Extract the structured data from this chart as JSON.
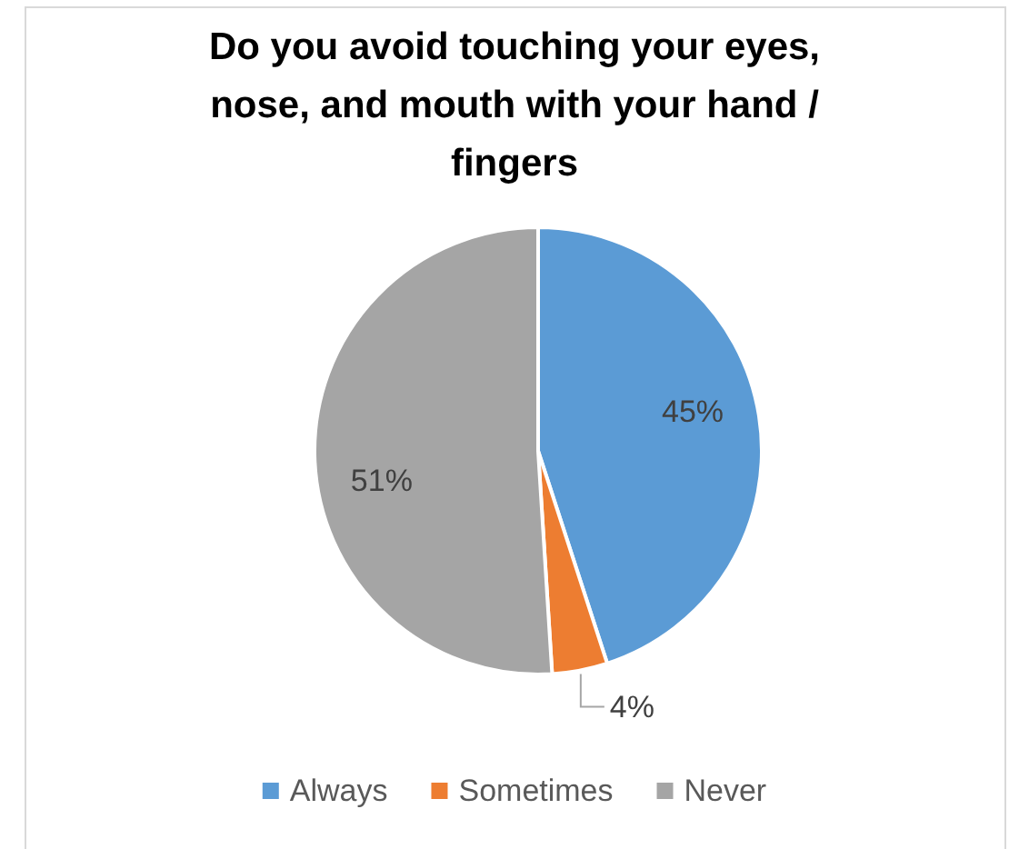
{
  "chart_data": {
    "type": "pie",
    "title": "Do you avoid touching your eyes, nose, and mouth with your hand / fingers",
    "categories": [
      "Always",
      "Sometimes",
      "Never"
    ],
    "values": [
      45,
      4,
      51
    ],
    "colors": [
      "#5b9bd5",
      "#ed7d31",
      "#a5a5a5"
    ],
    "value_labels": [
      "45%",
      "4%",
      "51%"
    ],
    "legend": "bottom"
  }
}
